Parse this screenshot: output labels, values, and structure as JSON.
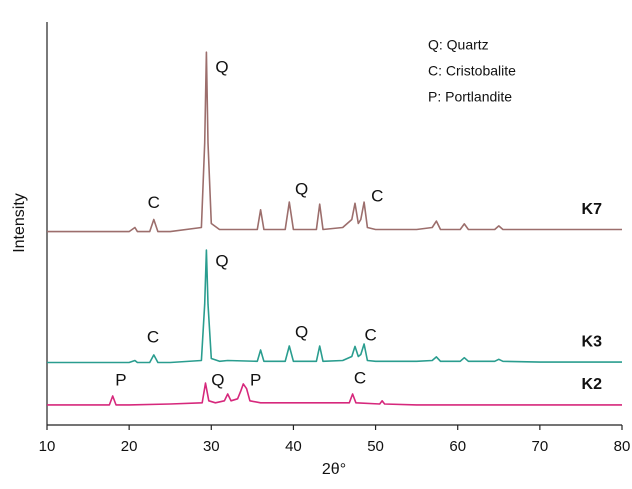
{
  "chart_data": {
    "type": "line",
    "x_label": "2θ°",
    "y_label": "Intensity",
    "xlim": [
      10,
      80
    ],
    "xticks": [
      10,
      20,
      30,
      40,
      50,
      60,
      70,
      80
    ],
    "ylim": [
      0,
      100
    ],
    "key": [
      "Q: Quartz",
      "C: Cristobalite",
      "P: Portlandite"
    ],
    "series": [
      {
        "name": "K7",
        "color": "#9c6e6c",
        "x": [
          10,
          15,
          20,
          20.7,
          21,
          22.5,
          23,
          23.5,
          25,
          28.8,
          29.2,
          29.4,
          29.6,
          30,
          31,
          32,
          35.6,
          36,
          36.4,
          39,
          39.5,
          40,
          42.8,
          43.2,
          43.6,
          46,
          47.1,
          47.5,
          47.9,
          48.2,
          48.6,
          49,
          50,
          55,
          56.9,
          57.4,
          57.9,
          60.3,
          60.8,
          61.3,
          64.5,
          65,
          65.5,
          70,
          75,
          80
        ],
        "values": [
          48,
          48,
          48,
          49,
          48,
          48,
          51,
          48,
          48,
          49,
          70,
          92.5,
          70,
          50,
          48.5,
          48.5,
          48.5,
          53.4,
          48.5,
          48.5,
          55.3,
          48.5,
          48.5,
          54.8,
          48.5,
          49,
          51,
          55,
          50,
          51,
          55.3,
          49,
          48.5,
          48.5,
          49,
          50.6,
          48.5,
          48.5,
          49.9,
          48.5,
          48.5,
          49.4,
          48.5,
          48.5,
          48.5,
          48.5
        ]
      },
      {
        "name": "K3",
        "color": "#2a9d8f",
        "x": [
          10,
          15,
          20,
          20.7,
          21,
          22.5,
          23,
          23.5,
          25,
          28.8,
          29.2,
          29.4,
          29.6,
          30,
          31,
          32,
          35.6,
          36,
          36.4,
          39,
          39.5,
          40,
          42.8,
          43.2,
          43.6,
          46,
          47.1,
          47.5,
          47.9,
          48.2,
          48.6,
          49,
          50,
          55,
          56.9,
          57.4,
          57.9,
          60.3,
          60.8,
          61.3,
          64.5,
          65,
          65.5,
          70,
          75,
          80
        ],
        "values": [
          15.5,
          15.5,
          15.5,
          16,
          15.5,
          15.5,
          17.4,
          15.5,
          15.5,
          16,
          30,
          43.4,
          30,
          16.5,
          15.8,
          16,
          15.8,
          18.6,
          15.8,
          15.8,
          19.6,
          15.8,
          15.8,
          19.6,
          15.8,
          16,
          17,
          19.5,
          17,
          17.5,
          20.1,
          16,
          15.8,
          15.8,
          16,
          16.9,
          15.8,
          15.8,
          16.7,
          15.8,
          15.8,
          16.3,
          15.8,
          15.6,
          15.6,
          15.6
        ]
      },
      {
        "name": "K2",
        "color": "#d6287c",
        "x": [
          10,
          15,
          17.6,
          18,
          18.4,
          20,
          25,
          28.9,
          29.3,
          29.7,
          30.5,
          31.6,
          32,
          32.4,
          33.2,
          33.6,
          33.9,
          34.3,
          34.7,
          36,
          40,
          46.8,
          47.2,
          47.6,
          50.5,
          50.8,
          51.1,
          55,
          60,
          70,
          80
        ],
        "values": [
          5,
          5,
          5,
          7.2,
          5,
          5,
          5.2,
          5.5,
          10.4,
          6,
          5.5,
          6,
          7.7,
          6,
          6.5,
          8.5,
          10.2,
          9,
          6,
          5.5,
          5.5,
          5.5,
          7.7,
          5.5,
          5.2,
          6,
          5.2,
          5,
          5,
          5,
          5
        ]
      }
    ],
    "annotations": [
      {
        "text": "C",
        "x": 23,
        "y": 55
      },
      {
        "text": "Q",
        "x": 31.3,
        "y": 88.6
      },
      {
        "text": "Q",
        "x": 41,
        "y": 58.3
      },
      {
        "text": "C",
        "x": 50.2,
        "y": 56.6
      },
      {
        "text": "C",
        "x": 22.9,
        "y": 21.6
      },
      {
        "text": "Q",
        "x": 31.3,
        "y": 40.4
      },
      {
        "text": "Q",
        "x": 41,
        "y": 22.8
      },
      {
        "text": "C",
        "x": 49.4,
        "y": 22.1
      },
      {
        "text": "P",
        "x": 19,
        "y": 10.9
      },
      {
        "text": "Q",
        "x": 30.8,
        "y": 10.9
      },
      {
        "text": "P",
        "x": 35.4,
        "y": 10.9
      },
      {
        "text": "C",
        "x": 48.1,
        "y": 11.4
      }
    ]
  }
}
